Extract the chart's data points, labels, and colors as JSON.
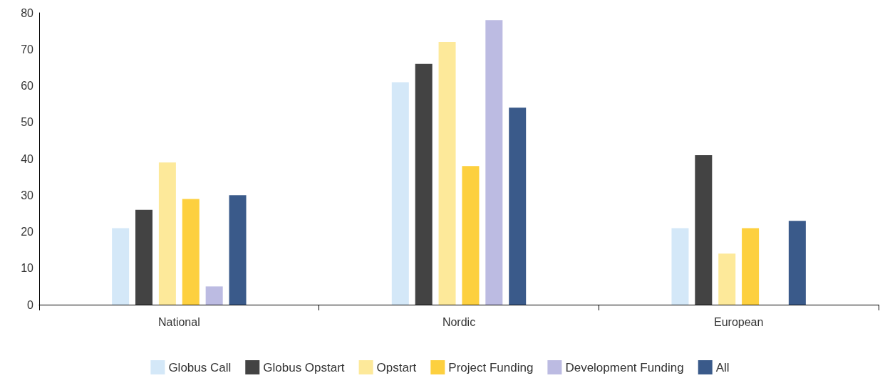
{
  "chart_data": {
    "type": "bar",
    "categories": [
      "National",
      "Nordic",
      "European"
    ],
    "series": [
      {
        "name": "Globus Call",
        "color": "#d4e8f8",
        "values": [
          21,
          61,
          21
        ]
      },
      {
        "name": "Globus Opstart",
        "color": "#434343",
        "values": [
          26,
          66,
          41
        ]
      },
      {
        "name": "Opstart",
        "color": "#fde99a",
        "values": [
          39,
          72,
          14
        ]
      },
      {
        "name": "Project Funding",
        "color": "#fdd03f",
        "values": [
          29,
          38,
          21
        ]
      },
      {
        "name": "Development Funding",
        "color": "#bcbbe2",
        "values": [
          5,
          78,
          null
        ]
      },
      {
        "name": "All",
        "color": "#3a5a8a",
        "values": [
          30,
          54,
          23
        ]
      }
    ],
    "ylim": [
      0,
      80
    ],
    "yticks": [
      0,
      10,
      20,
      30,
      40,
      50,
      60,
      70,
      80
    ],
    "grid": false,
    "legend": "bottom"
  }
}
